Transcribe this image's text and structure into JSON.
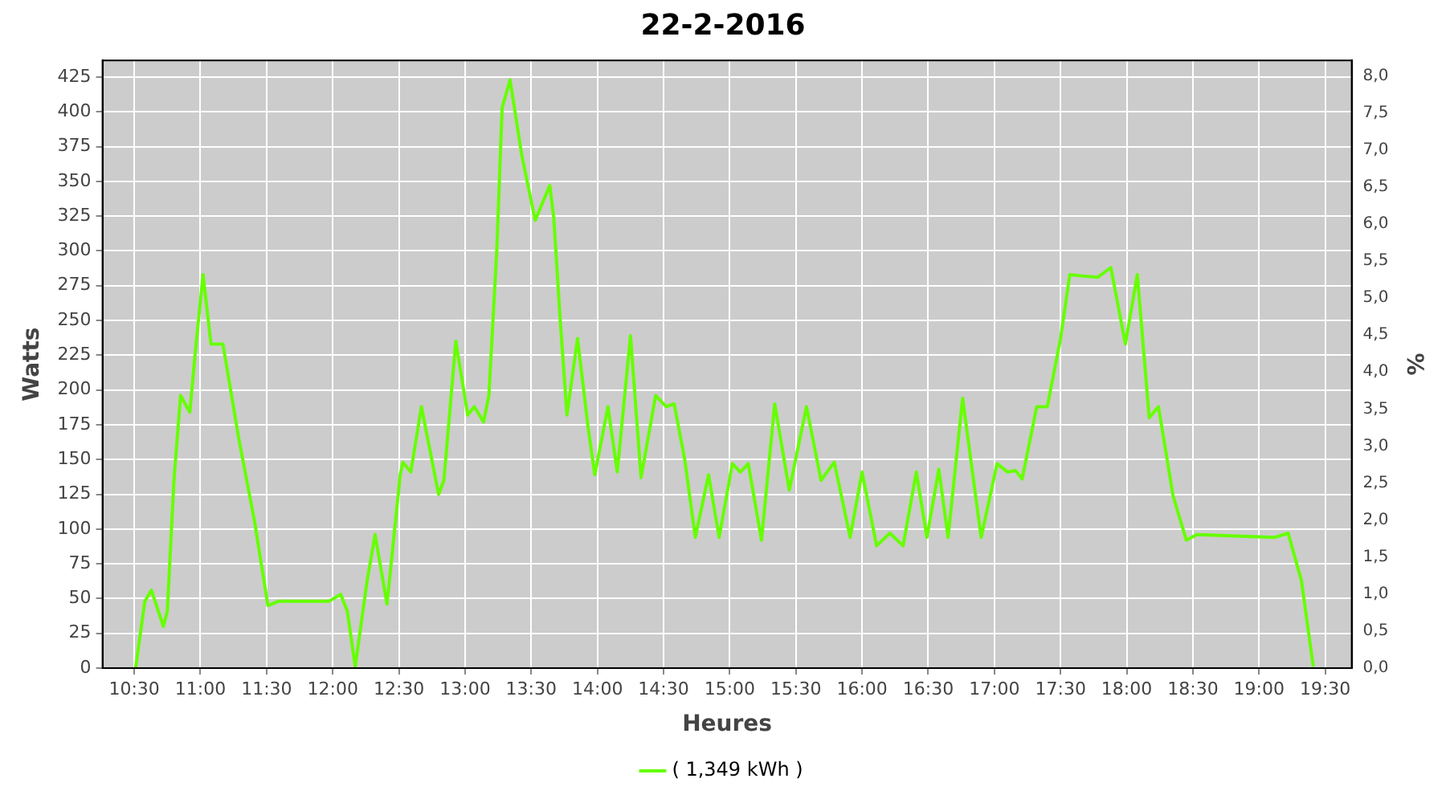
{
  "chart_data": {
    "type": "line",
    "title": "22-2-2016",
    "xlabel": "Heures",
    "ylabel": "Watts",
    "y2label": "%",
    "x": [
      10.51,
      10.58,
      10.63,
      10.72,
      10.75,
      10.8,
      10.85,
      10.92,
      10.96,
      11.02,
      11.08,
      11.17,
      11.29,
      11.41,
      11.51,
      11.59,
      11.97,
      12.06,
      12.11,
      12.17,
      12.26,
      12.32,
      12.41,
      12.51,
      12.53,
      12.59,
      12.67,
      12.8,
      12.84,
      12.93,
      13.02,
      13.07,
      13.14,
      13.18,
      13.24,
      13.28,
      13.34,
      13.43,
      13.53,
      13.64,
      13.67,
      13.72,
      13.77,
      13.85,
      13.93,
      13.98,
      14.08,
      14.15,
      14.25,
      14.33,
      14.44,
      14.52,
      14.58,
      14.66,
      14.74,
      14.84,
      14.92,
      15.02,
      15.08,
      15.14,
      15.24,
      15.34,
      15.45,
      15.58,
      15.69,
      15.79,
      15.91,
      16.0,
      16.11,
      16.21,
      16.31,
      16.41,
      16.49,
      16.58,
      16.65,
      16.76,
      16.9,
      17.02,
      17.1,
      17.16,
      17.21,
      17.32,
      17.4,
      17.5,
      17.57,
      17.66,
      17.78,
      17.88,
      17.99,
      18.08,
      18.17,
      18.24,
      18.35,
      18.45,
      18.53,
      19.12,
      19.22,
      19.32,
      19.41
    ],
    "series": [
      {
        "name": "( 1,349 kWh )",
        "color": "#66ff00",
        "values": [
          0,
          48,
          56,
          30,
          41,
          135,
          196,
          184,
          226,
          283,
          233,
          233,
          165,
          105,
          45,
          48,
          48,
          53,
          41,
          1,
          63,
          96,
          46,
          139,
          148,
          141,
          188,
          125,
          135,
          235,
          182,
          188,
          177,
          196,
          301,
          403,
          423,
          368,
          322,
          347,
          324,
          249,
          182,
          237,
          173,
          139,
          188,
          141,
          239,
          137,
          196,
          188,
          190,
          150,
          94,
          139,
          94,
          147,
          141,
          147,
          92,
          190,
          128,
          188,
          135,
          148,
          94,
          141,
          88,
          97,
          88,
          141,
          94,
          143,
          94,
          194,
          94,
          147,
          141,
          142,
          136,
          188,
          188,
          237,
          283,
          282,
          281,
          288,
          233,
          283,
          180,
          188,
          124,
          92,
          96,
          94,
          97,
          63,
          1
        ]
      }
    ],
    "xlim": [
      10.26,
      19.7
    ],
    "xticks": [
      {
        "value": 10.5,
        "label": "10:30"
      },
      {
        "value": 11,
        "label": "11:00"
      },
      {
        "value": 11.5,
        "label": "11:30"
      },
      {
        "value": 12,
        "label": "12:00"
      },
      {
        "value": 12.5,
        "label": "12:30"
      },
      {
        "value": 13,
        "label": "13:00"
      },
      {
        "value": 13.5,
        "label": "13:30"
      },
      {
        "value": 14,
        "label": "14:00"
      },
      {
        "value": 14.5,
        "label": "14:30"
      },
      {
        "value": 15,
        "label": "15:00"
      },
      {
        "value": 15.5,
        "label": "15:30"
      },
      {
        "value": 16,
        "label": "16:00"
      },
      {
        "value": 16.5,
        "label": "16:30"
      },
      {
        "value": 17,
        "label": "17:00"
      },
      {
        "value": 17.5,
        "label": "17:30"
      },
      {
        "value": 18,
        "label": "18:00"
      },
      {
        "value": 18.5,
        "label": "18:30"
      },
      {
        "value": 19,
        "label": "19:00"
      },
      {
        "value": 19.5,
        "label": "19:30"
      }
    ],
    "ylim": [
      0,
      437
    ],
    "yticks": [
      0,
      25,
      50,
      75,
      100,
      125,
      150,
      175,
      200,
      225,
      250,
      275,
      300,
      325,
      350,
      375,
      400,
      425
    ],
    "y2lim": [
      0,
      8.21
    ],
    "y2ticks": [
      {
        "value": 0,
        "label": "0,0"
      },
      {
        "value": 0.5,
        "label": "0,5"
      },
      {
        "value": 1,
        "label": "1,0"
      },
      {
        "value": 1.5,
        "label": "1,5"
      },
      {
        "value": 2,
        "label": "2,0"
      },
      {
        "value": 2.5,
        "label": "2,5"
      },
      {
        "value": 3,
        "label": "3,0"
      },
      {
        "value": 3.5,
        "label": "3,5"
      },
      {
        "value": 4,
        "label": "4,0"
      },
      {
        "value": 4.5,
        "label": "4,5"
      },
      {
        "value": 5,
        "label": "5,0"
      },
      {
        "value": 5.5,
        "label": "5,5"
      },
      {
        "value": 6,
        "label": "6,0"
      },
      {
        "value": 6.5,
        "label": "6,5"
      },
      {
        "value": 7,
        "label": "7,0"
      },
      {
        "value": 7.5,
        "label": "7,5"
      },
      {
        "value": 8,
        "label": "8,0"
      }
    ],
    "grid": true,
    "legend": "bottom",
    "marker": "none",
    "line_style": "solid"
  }
}
